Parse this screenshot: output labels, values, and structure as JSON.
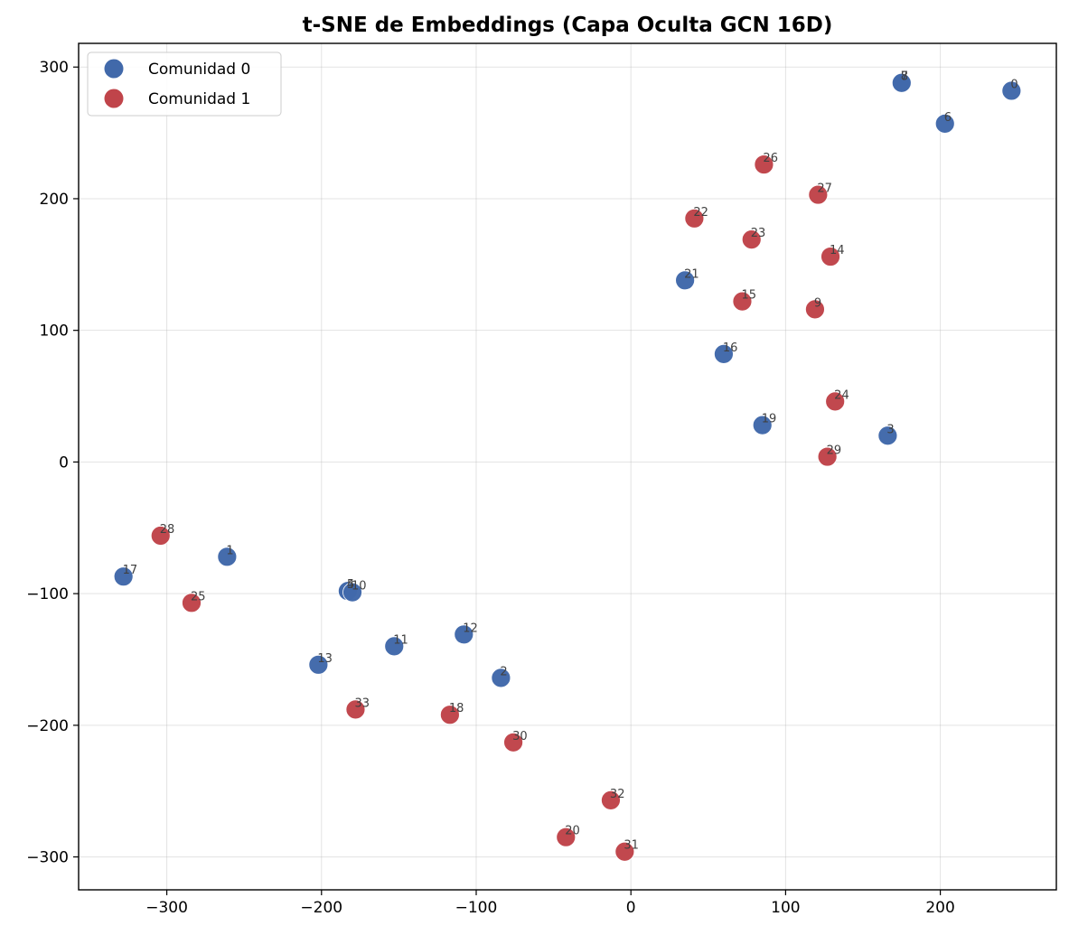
{
  "chart_data": {
    "type": "scatter",
    "title": "t-SNE de Embeddings (Capa Oculta GCN 16D)",
    "xlabel": "",
    "ylabel": "",
    "xlim": [
      -357,
      275
    ],
    "ylim": [
      -325,
      318
    ],
    "xticks": [
      -300,
      -200,
      -100,
      0,
      100,
      200
    ],
    "yticks": [
      -300,
      -200,
      -100,
      0,
      100,
      200,
      300
    ],
    "xtick_labels": [
      "−300",
      "−200",
      "−100",
      "0",
      "100",
      "200"
    ],
    "ytick_labels": [
      "−300",
      "−200",
      "−100",
      "0",
      "100",
      "200",
      "300"
    ],
    "grid": true,
    "legend_position": "top-left",
    "series": [
      {
        "name": "Comunidad 0",
        "color": "#4169aa",
        "points": [
          {
            "label": "0",
            "x": 246,
            "y": 282
          },
          {
            "label": "1",
            "x": -261,
            "y": -72
          },
          {
            "label": "2",
            "x": -84,
            "y": -164
          },
          {
            "label": "3",
            "x": 166,
            "y": 20
          },
          {
            "label": "4",
            "x": -183,
            "y": -98
          },
          {
            "label": "5",
            "x": -183,
            "y": -98
          },
          {
            "label": "6",
            "x": 203,
            "y": 257
          },
          {
            "label": "7",
            "x": 175,
            "y": 288
          },
          {
            "label": "8",
            "x": 175,
            "y": 288
          },
          {
            "label": "10",
            "x": -180,
            "y": -99
          },
          {
            "label": "11",
            "x": -153,
            "y": -140
          },
          {
            "label": "12",
            "x": -108,
            "y": -131
          },
          {
            "label": "13",
            "x": -202,
            "y": -154
          },
          {
            "label": "16",
            "x": 60,
            "y": 82
          },
          {
            "label": "17",
            "x": -328,
            "y": -87
          },
          {
            "label": "19",
            "x": 85,
            "y": 28
          },
          {
            "label": "21",
            "x": 35,
            "y": 138
          }
        ]
      },
      {
        "name": "Comunidad 1",
        "color": "#c0444a",
        "points": [
          {
            "label": "9",
            "x": 119,
            "y": 116
          },
          {
            "label": "14",
            "x": 129,
            "y": 156
          },
          {
            "label": "15",
            "x": 72,
            "y": 122
          },
          {
            "label": "18",
            "x": -117,
            "y": -192
          },
          {
            "label": "20",
            "x": -42,
            "y": -285
          },
          {
            "label": "22",
            "x": 41,
            "y": 185
          },
          {
            "label": "23",
            "x": 78,
            "y": 169
          },
          {
            "label": "24",
            "x": 132,
            "y": 46
          },
          {
            "label": "25",
            "x": -284,
            "y": -107
          },
          {
            "label": "26",
            "x": 86,
            "y": 226
          },
          {
            "label": "27",
            "x": 121,
            "y": 203
          },
          {
            "label": "28",
            "x": -304,
            "y": -56
          },
          {
            "label": "29",
            "x": 127,
            "y": 4
          },
          {
            "label": "30",
            "x": -76,
            "y": -213
          },
          {
            "label": "31",
            "x": -4,
            "y": -296
          },
          {
            "label": "32",
            "x": -13,
            "y": -257
          },
          {
            "label": "33",
            "x": -178,
            "y": -188
          }
        ]
      }
    ]
  }
}
